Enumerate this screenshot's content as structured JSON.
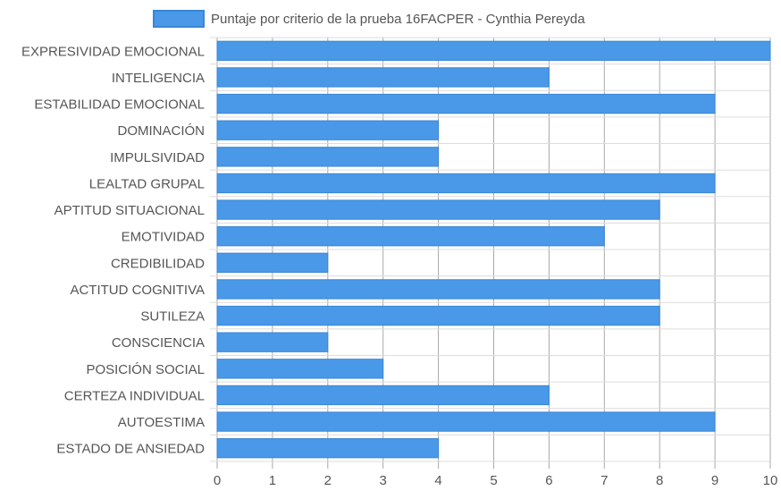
{
  "chart_data": {
    "type": "bar",
    "orientation": "horizontal",
    "legend": {
      "label": "Puntaje por criterio de la prueba 16FACPER - Cynthia Pereyda",
      "position": "top-center"
    },
    "categories": [
      "EXPRESIVIDAD EMOCIONAL",
      "INTELIGENCIA",
      "ESTABILIDAD EMOCIONAL",
      "DOMINACIÓN",
      "IMPULSIVIDAD",
      "LEALTAD GRUPAL",
      "APTITUD SITUACIONAL",
      "EMOTIVIDAD",
      "CREDIBILIDAD",
      "ACTITUD COGNITIVA",
      "SUTILEZA",
      "CONSCIENCIA",
      "POSICIÓN SOCIAL",
      "CERTEZA INDIVIDUAL",
      "AUTOESTIMA",
      "ESTADO DE ANSIEDAD"
    ],
    "series": [
      {
        "name": "Puntaje por criterio de la prueba 16FACPER - Cynthia Pereyda",
        "values": [
          10,
          6,
          9,
          4,
          4,
          9,
          8,
          7,
          2,
          8,
          8,
          2,
          3,
          6,
          9,
          4
        ]
      }
    ],
    "xlim": [
      0,
      10
    ],
    "xticks": [
      "0",
      "1",
      "2",
      "3",
      "4",
      "5",
      "6",
      "7",
      "8",
      "9",
      "10"
    ],
    "grid": true,
    "colors": {
      "bar_fill": "#4a98e8",
      "bar_border": "#3a86d6",
      "grid": "#dcdcdc",
      "axis_grid": "#a8a8a8",
      "text": "#555555"
    }
  }
}
